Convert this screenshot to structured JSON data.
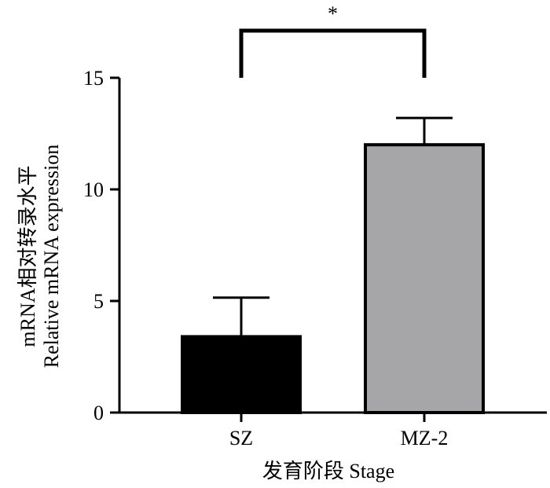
{
  "chart_data": {
    "type": "bar",
    "title": "",
    "categories": [
      "SZ",
      "MZ-2"
    ],
    "values": [
      3.4,
      12.0
    ],
    "errors": [
      1.75,
      1.2
    ],
    "bar_colors": [
      "#000000",
      "#a6a6a8"
    ],
    "bar_edge_color": "#000000",
    "xlabel": "发育阶段 Stage",
    "ylabel_line1": "mRNA相对转录水平",
    "ylabel_line2": "Relative mRNA expression",
    "ylim": [
      0,
      15
    ],
    "yticks": [
      0,
      5,
      10,
      15
    ],
    "significance": {
      "between": [
        "SZ",
        "MZ-2"
      ],
      "label": "*"
    },
    "grid": false,
    "legend": "none"
  }
}
